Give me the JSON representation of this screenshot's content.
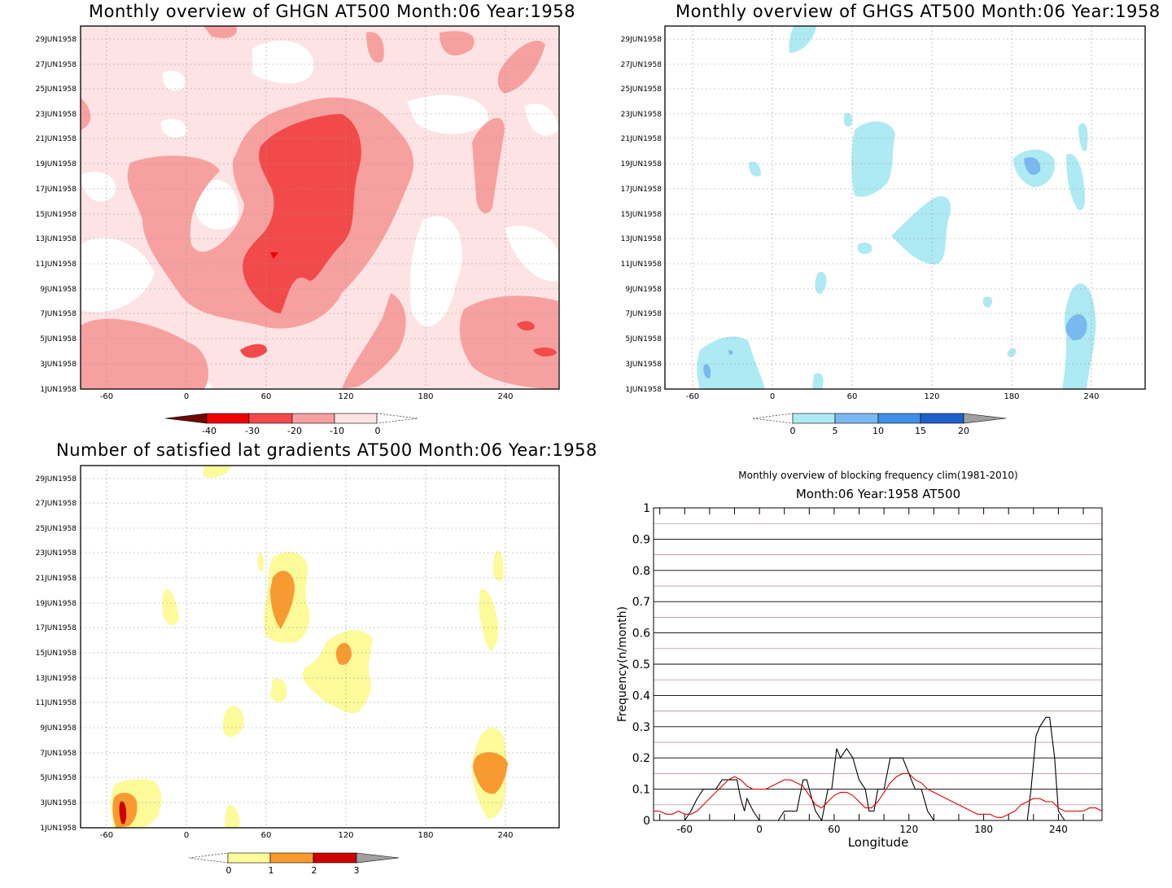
{
  "panels": [
    {
      "id": "ghgn",
      "title": "Monthly overview of GHGN AT500 Month:06 Year:1958",
      "yticks": [
        "1JUN1958",
        "3JUN1958",
        "5JUN1958",
        "7JUN1958",
        "9JUN1958",
        "11JUN1958",
        "13JUN1958",
        "15JUN1958",
        "17JUN1958",
        "19JUN1958",
        "21JUN1958",
        "23JUN1958",
        "25JUN1958",
        "27JUN1958",
        "29JUN1958"
      ],
      "xticks": [
        "-60",
        "0",
        "60",
        "120",
        "180",
        "240"
      ],
      "colorbar": {
        "labels": [
          "-40",
          "-30",
          "-20",
          "-10",
          "0"
        ],
        "colors": [
          "#6e0a00",
          "#ee0000",
          "#f24a4a",
          "#f7a0a0",
          "#fde3e3"
        ]
      }
    },
    {
      "id": "ghgs",
      "title": "Monthly overview of GHGS AT500 Month:06 Year:1958",
      "yticks": [
        "1JUN1958",
        "3JUN1958",
        "5JUN1958",
        "7JUN1958",
        "9JUN1958",
        "11JUN1958",
        "13JUN1958",
        "15JUN1958",
        "17JUN1958",
        "19JUN1958",
        "21JUN1958",
        "23JUN1958",
        "25JUN1958",
        "27JUN1958",
        "29JUN1958"
      ],
      "xticks": [
        "-60",
        "0",
        "60",
        "120",
        "180",
        "240"
      ],
      "colorbar": {
        "labels": [
          "0",
          "5",
          "10",
          "15",
          "20"
        ],
        "colors": [
          "#aeeaf3",
          "#7ab8f0",
          "#3f8ee8",
          "#1f60c8",
          "#a0a0a0"
        ]
      }
    },
    {
      "id": "latgrad",
      "title": "Number of satisfied lat gradients AT500 Month:06 Year:1958",
      "yticks": [
        "1JUN1958",
        "3JUN1958",
        "5JUN1958",
        "7JUN1958",
        "9JUN1958",
        "11JUN1958",
        "13JUN1958",
        "15JUN1958",
        "17JUN1958",
        "19JUN1958",
        "21JUN1958",
        "23JUN1958",
        "25JUN1958",
        "27JUN1958",
        "29JUN1958"
      ],
      "xticks": [
        "-60",
        "0",
        "60",
        "120",
        "180",
        "240"
      ],
      "colorbar": {
        "labels": [
          "0",
          "1",
          "2",
          "3"
        ],
        "colors": [
          "#fdfa9a",
          "#f99a30",
          "#cc0000",
          "#a0a0a0"
        ]
      }
    }
  ],
  "chart_data": [
    {
      "type": "heatmap",
      "title": "Monthly overview of GHGN AT500 Month:06 Year:1958",
      "x_range": [
        -85,
        275
      ],
      "y_range": [
        "1JUN1958",
        "30JUN1958"
      ],
      "color_levels": [
        -40,
        -30,
        -20,
        -10,
        0
      ],
      "note_values": "strongest negative region near longitude 50-130 between 9JUN and 22JUN"
    },
    {
      "type": "heatmap",
      "title": "Monthly overview of GHGS AT500 Month:06 Year:1958",
      "x_range": [
        -85,
        275
      ],
      "y_range": [
        "1JUN1958",
        "30JUN1958"
      ],
      "color_levels": [
        0,
        5,
        10,
        15,
        20
      ]
    },
    {
      "type": "heatmap",
      "title": "Number of satisfied lat gradients AT500 Month:06 Year:1958",
      "x_range": [
        -85,
        275
      ],
      "y_range": [
        "1JUN1958",
        "30JUN1958"
      ],
      "color_levels": [
        0,
        1,
        2,
        3
      ]
    },
    {
      "type": "line",
      "title": "Monthly overview of blocking frequency clim(1981-2010)",
      "subtitle": "Month:06 Year:1958  AT500",
      "xlabel": "Longitude",
      "ylabel": "Frequency(n/month)",
      "xlim": [
        -85,
        275
      ],
      "ylim": [
        0,
        1
      ],
      "xticks": [
        "-60",
        "0",
        "60",
        "120",
        "180",
        "240"
      ],
      "yticks": [
        "0",
        "0.1",
        "0.2",
        "0.3",
        "0.4",
        "0.5",
        "0.6",
        "0.7",
        "0.8",
        "0.9",
        "1"
      ],
      "series": [
        {
          "color": "#000000",
          "x": [
            -85,
            -60,
            -55,
            -50,
            -45,
            -40,
            -35,
            -30,
            -25,
            -20,
            -18,
            -15,
            -12,
            -10,
            -5,
            0,
            5,
            10,
            15,
            20,
            25,
            30,
            35,
            38,
            42,
            45,
            50,
            55,
            58,
            62,
            65,
            70,
            75,
            80,
            85,
            88,
            92,
            95,
            100,
            105,
            110,
            115,
            118,
            122,
            125,
            130,
            135,
            140,
            145,
            150,
            155,
            160,
            165,
            170,
            175,
            180,
            185,
            190,
            195,
            200,
            205,
            210,
            215,
            218,
            222,
            225,
            230,
            233,
            237,
            240,
            245,
            250,
            255,
            260,
            265,
            270,
            275
          ],
          "y": [
            0,
            0,
            0.03,
            0.07,
            0.1,
            0.1,
            0.1,
            0.13,
            0.13,
            0.13,
            0.13,
            0.07,
            0.03,
            0.07,
            0.03,
            0,
            0,
            0,
            0,
            0.03,
            0.03,
            0.03,
            0.13,
            0.13,
            0.07,
            0.03,
            0,
            0.1,
            0.1,
            0.23,
            0.2,
            0.23,
            0.2,
            0.13,
            0.1,
            0.03,
            0.03,
            0.1,
            0.1,
            0.2,
            0.2,
            0.2,
            0.17,
            0.13,
            0.1,
            0.1,
            0.03,
            0,
            0,
            0,
            0,
            0,
            0,
            0,
            0,
            0,
            0,
            0,
            0,
            0,
            0,
            0,
            0,
            0.1,
            0.27,
            0.3,
            0.33,
            0.33,
            0.2,
            0.03,
            0,
            0,
            0,
            0,
            0,
            0,
            0
          ]
        },
        {
          "color": "#e00000",
          "x": [
            -85,
            -80,
            -75,
            -70,
            -65,
            -60,
            -55,
            -50,
            -45,
            -40,
            -35,
            -30,
            -25,
            -20,
            -15,
            -10,
            -5,
            0,
            5,
            10,
            15,
            20,
            25,
            30,
            35,
            40,
            45,
            50,
            55,
            60,
            65,
            70,
            75,
            80,
            85,
            90,
            95,
            100,
            105,
            110,
            115,
            120,
            125,
            130,
            135,
            140,
            145,
            150,
            155,
            160,
            165,
            170,
            175,
            180,
            185,
            190,
            195,
            200,
            205,
            210,
            215,
            220,
            225,
            230,
            235,
            240,
            245,
            250,
            255,
            260,
            265,
            270,
            275
          ],
          "y": [
            0.03,
            0.03,
            0.02,
            0.02,
            0.03,
            0.02,
            0.02,
            0.03,
            0.05,
            0.07,
            0.09,
            0.11,
            0.13,
            0.14,
            0.13,
            0.11,
            0.1,
            0.1,
            0.1,
            0.11,
            0.12,
            0.13,
            0.13,
            0.12,
            0.11,
            0.08,
            0.05,
            0.04,
            0.06,
            0.08,
            0.09,
            0.09,
            0.08,
            0.06,
            0.04,
            0.04,
            0.06,
            0.09,
            0.12,
            0.14,
            0.15,
            0.15,
            0.13,
            0.12,
            0.1,
            0.09,
            0.08,
            0.07,
            0.06,
            0.05,
            0.04,
            0.03,
            0.02,
            0.02,
            0.02,
            0.01,
            0.01,
            0.02,
            0.03,
            0.05,
            0.06,
            0.07,
            0.07,
            0.06,
            0.06,
            0.04,
            0.03,
            0.03,
            0.03,
            0.03,
            0.04,
            0.04,
            0.03
          ]
        }
      ]
    }
  ]
}
